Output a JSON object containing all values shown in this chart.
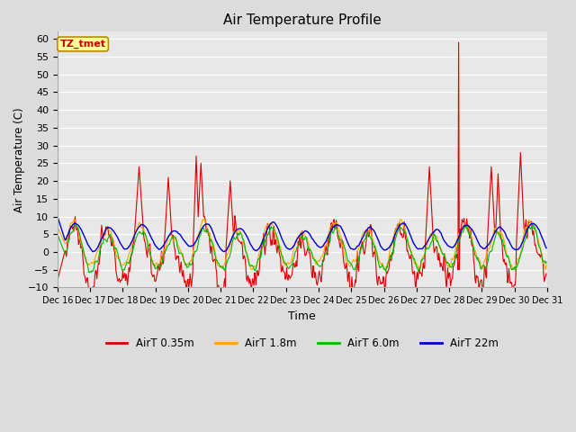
{
  "title": "Air Temperature Profile",
  "xlabel": "Time",
  "ylabel": "Air Temperature (C)",
  "ylim": [
    -10,
    62
  ],
  "yticks": [
    -10,
    -5,
    0,
    5,
    10,
    15,
    20,
    25,
    30,
    35,
    40,
    45,
    50,
    55,
    60
  ],
  "background_color": "#dcdcdc",
  "plot_bg": "#e8e8e8",
  "grid_color": "white",
  "series": {
    "AirT 0.35m": {
      "color": "#dd0000",
      "lw": 0.8
    },
    "AirT 1.8m": {
      "color": "#ffa500",
      "lw": 0.8
    },
    "AirT 6.0m": {
      "color": "#00bb00",
      "lw": 0.8
    },
    "AirT 22m": {
      "color": "#0000cc",
      "lw": 1.0
    }
  },
  "annotation": {
    "text": "TZ_tmet",
    "facecolor": "#ffff99",
    "edgecolor": "#bb8800",
    "textcolor": "#cc0000",
    "fontsize": 8,
    "fontweight": "bold"
  },
  "legend_ncol": 4,
  "n_days": 15,
  "pts_per_day": 48
}
